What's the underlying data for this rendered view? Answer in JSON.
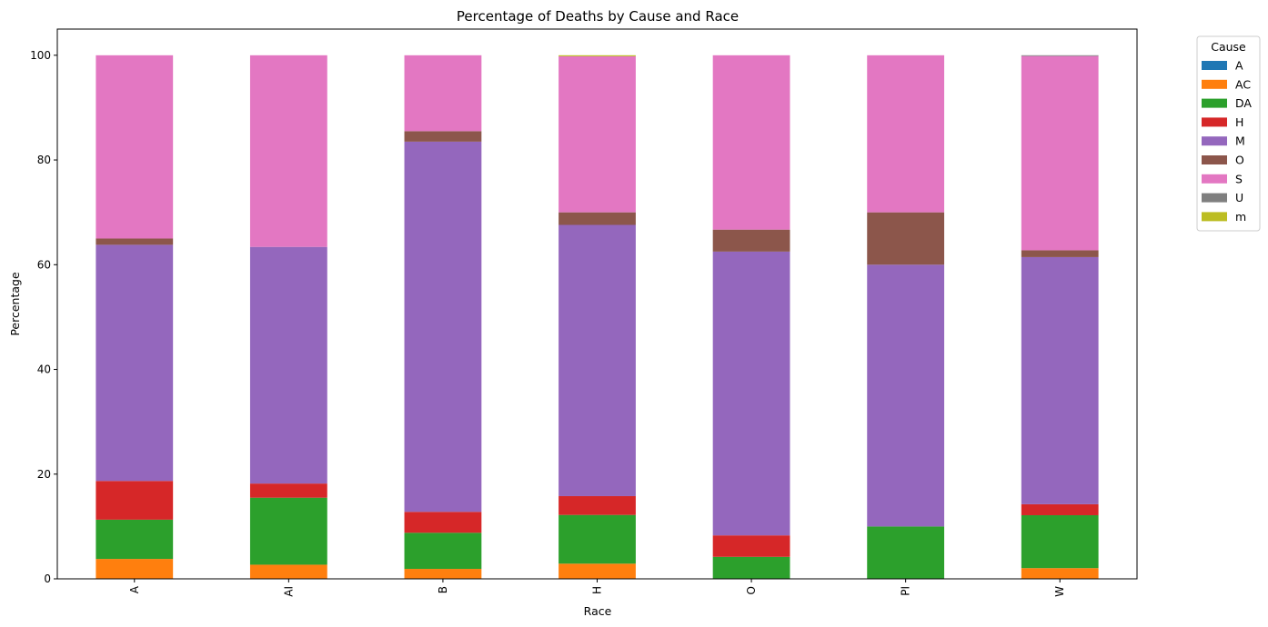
{
  "chart_data": {
    "type": "bar",
    "stacked": true,
    "title": "Percentage of Deaths by Cause and Race",
    "xlabel": "Race",
    "ylabel": "Percentage",
    "categories": [
      "A",
      "AI",
      "B",
      "H",
      "O",
      "PI",
      "W"
    ],
    "ylim": [
      0,
      105
    ],
    "yticks": [
      0,
      20,
      40,
      60,
      80,
      100
    ],
    "legend": {
      "title": "Cause",
      "placement": "outside-top-right"
    },
    "series": [
      {
        "name": "A",
        "color": "#1f77b4",
        "values": [
          0,
          0,
          0,
          0,
          0,
          0,
          0.05
        ]
      },
      {
        "name": "AC",
        "color": "#ff7f0e",
        "values": [
          3.8,
          2.7,
          1.9,
          2.9,
          0,
          0,
          2.0
        ]
      },
      {
        "name": "DA",
        "color": "#2ca02c",
        "values": [
          7.5,
          12.8,
          6.9,
          9.3,
          4.2,
          10.0,
          10.1
        ]
      },
      {
        "name": "H",
        "color": "#d62728",
        "values": [
          7.4,
          2.7,
          4.0,
          3.6,
          4.1,
          0,
          2.1
        ]
      },
      {
        "name": "M",
        "color": "#9467bd",
        "values": [
          45.1,
          45.2,
          70.7,
          51.8,
          54.2,
          50.0,
          47.2
        ]
      },
      {
        "name": "O",
        "color": "#8c564b",
        "values": [
          1.2,
          0,
          2.0,
          2.4,
          4.2,
          10.0,
          1.3
        ]
      },
      {
        "name": "S",
        "color": "#e377c2",
        "values": [
          35.0,
          36.6,
          14.5,
          29.8,
          33.3,
          30.0,
          37.1
        ]
      },
      {
        "name": "U",
        "color": "#7f7f7f",
        "values": [
          0,
          0,
          0,
          0,
          0,
          0,
          0.15
        ]
      },
      {
        "name": "m",
        "color": "#bcbd22",
        "values": [
          0,
          0,
          0,
          0.2,
          0,
          0,
          0
        ]
      }
    ]
  }
}
